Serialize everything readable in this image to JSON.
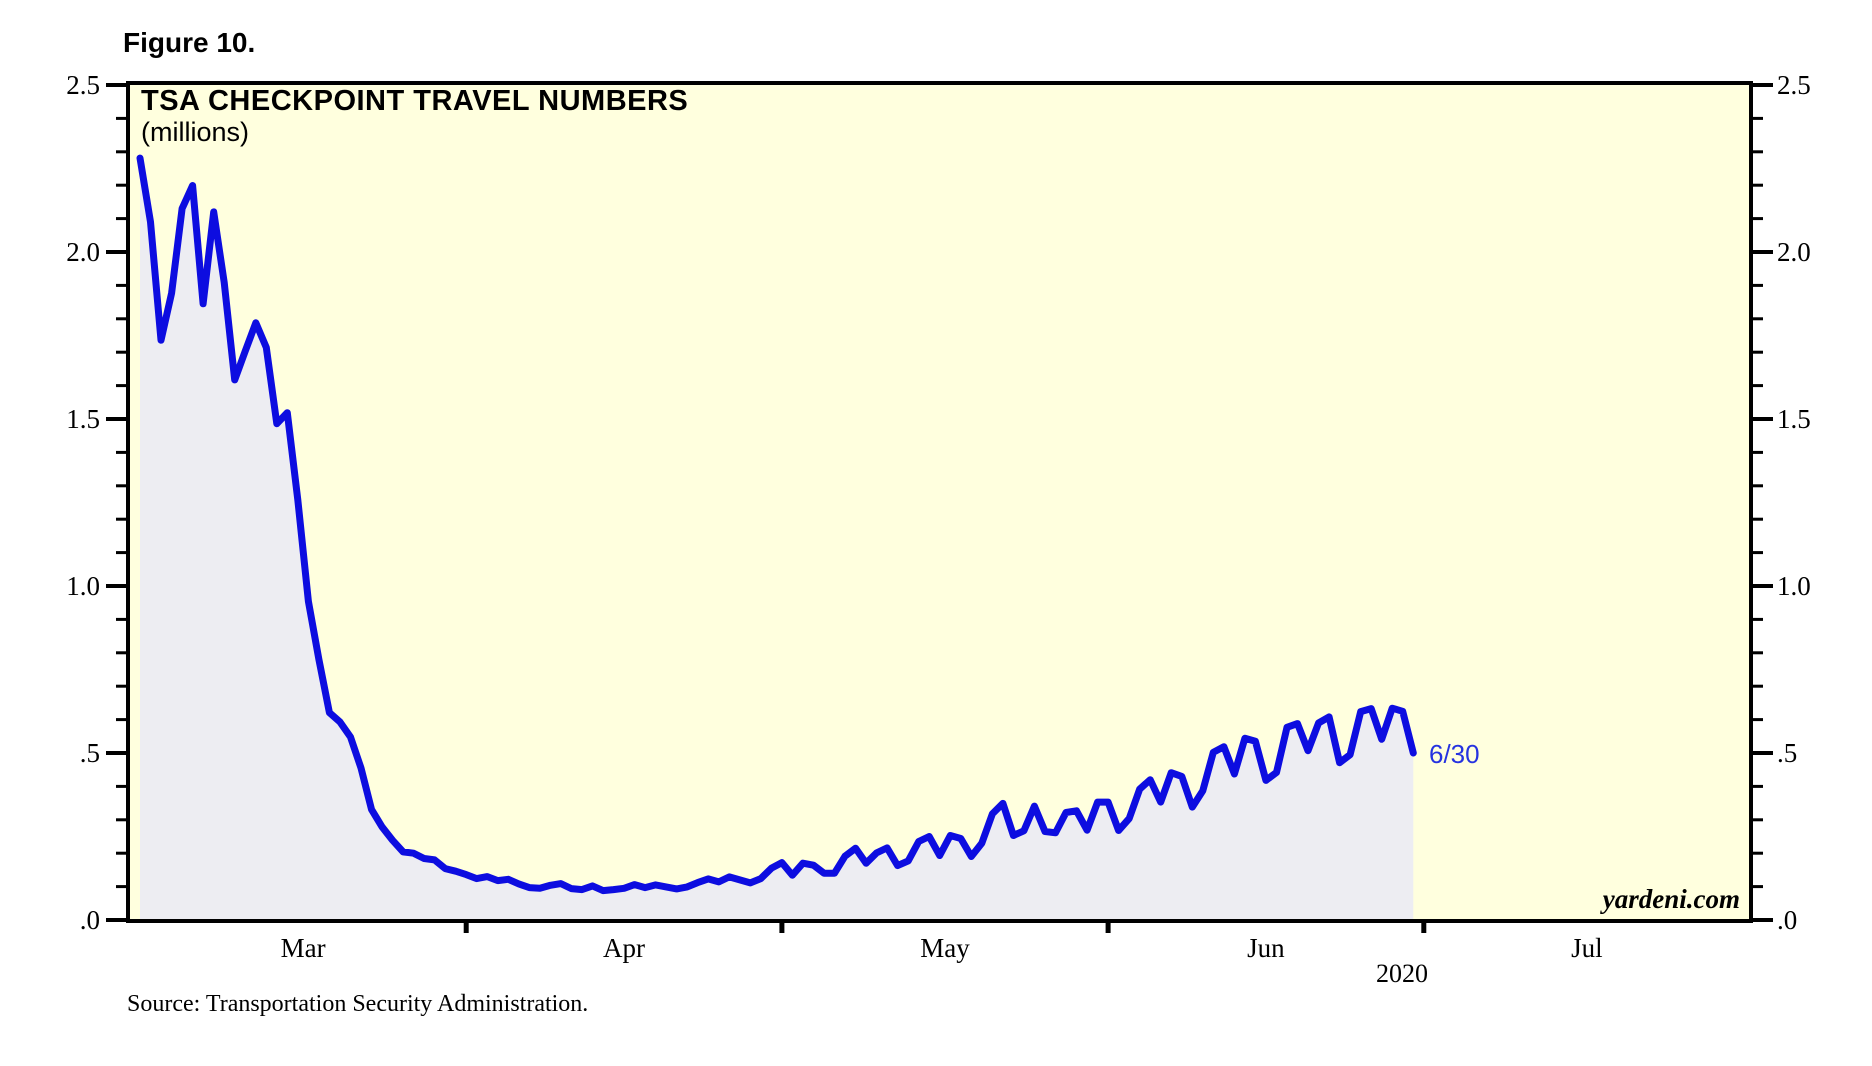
{
  "chart_data": {
    "type": "area",
    "figure_label": "Figure 10.",
    "title": "TSA CHECKPOINT TRAVEL NUMBERS",
    "subtitle": "(millions)",
    "watermark": "yardeni.com",
    "source": "Source: Transportation Security Administration.",
    "year_label": "2020",
    "last_point_label": "6/30",
    "last_point_value": 0.5,
    "grid": false,
    "legend": "none",
    "plot_bg": "#FFFFDE",
    "colors": {
      "line": "#0D0DE0",
      "fill": "#EDEDF2",
      "plot_bg": "#FFFFDE",
      "frame": "#000000",
      "date_label": "#2633E0"
    },
    "y_axis": {
      "range": [
        0,
        2.5
      ],
      "tick_labels": [
        ".0",
        ".5",
        "1.0",
        "1.5",
        "2.0",
        "2.5"
      ],
      "tick_values": [
        0,
        0.5,
        1.0,
        1.5,
        2.0,
        2.5
      ],
      "minor_step": 0.1,
      "sides": "both"
    },
    "x_axis": {
      "month_labels": [
        "Mar",
        "Apr",
        "May",
        "Jun",
        "Jul"
      ],
      "month_day_counts": [
        31,
        30,
        31,
        30,
        31
      ],
      "start_date": "2020-03-01",
      "axis_end_date": "2020-08-01",
      "tick_at": "month-starts"
    },
    "series": [
      {
        "name": "TSA checkpoint travel numbers (daily, millions)",
        "start_date": "2020-03-01",
        "end_date": "2020-06-30",
        "values": [
          2.281,
          2.09,
          1.736,
          1.877,
          2.13,
          2.199,
          1.845,
          2.12,
          1.909,
          1.617,
          1.703,
          1.788,
          1.714,
          1.486,
          1.519,
          1.258,
          0.954,
          0.78,
          0.621,
          0.593,
          0.548,
          0.455,
          0.331,
          0.279,
          0.239,
          0.204,
          0.2,
          0.184,
          0.18,
          0.154,
          0.146,
          0.136,
          0.124,
          0.13,
          0.118,
          0.122,
          0.108,
          0.097,
          0.095,
          0.104,
          0.109,
          0.094,
          0.091,
          0.102,
          0.088,
          0.091,
          0.095,
          0.106,
          0.097,
          0.105,
          0.099,
          0.093,
          0.099,
          0.112,
          0.123,
          0.114,
          0.129,
          0.12,
          0.111,
          0.124,
          0.155,
          0.172,
          0.134,
          0.17,
          0.164,
          0.14,
          0.14,
          0.191,
          0.215,
          0.17,
          0.201,
          0.216,
          0.163,
          0.177,
          0.235,
          0.25,
          0.193,
          0.253,
          0.244,
          0.19,
          0.23,
          0.318,
          0.349,
          0.253,
          0.267,
          0.341,
          0.265,
          0.261,
          0.322,
          0.327,
          0.269,
          0.353,
          0.353,
          0.268,
          0.304,
          0.392,
          0.42,
          0.353,
          0.441,
          0.43,
          0.338,
          0.387,
          0.502,
          0.519,
          0.437,
          0.544,
          0.535,
          0.418,
          0.442,
          0.577,
          0.588,
          0.507,
          0.59,
          0.608,
          0.471,
          0.495,
          0.624,
          0.633,
          0.541,
          0.634,
          0.625,
          0.5
        ]
      }
    ]
  }
}
